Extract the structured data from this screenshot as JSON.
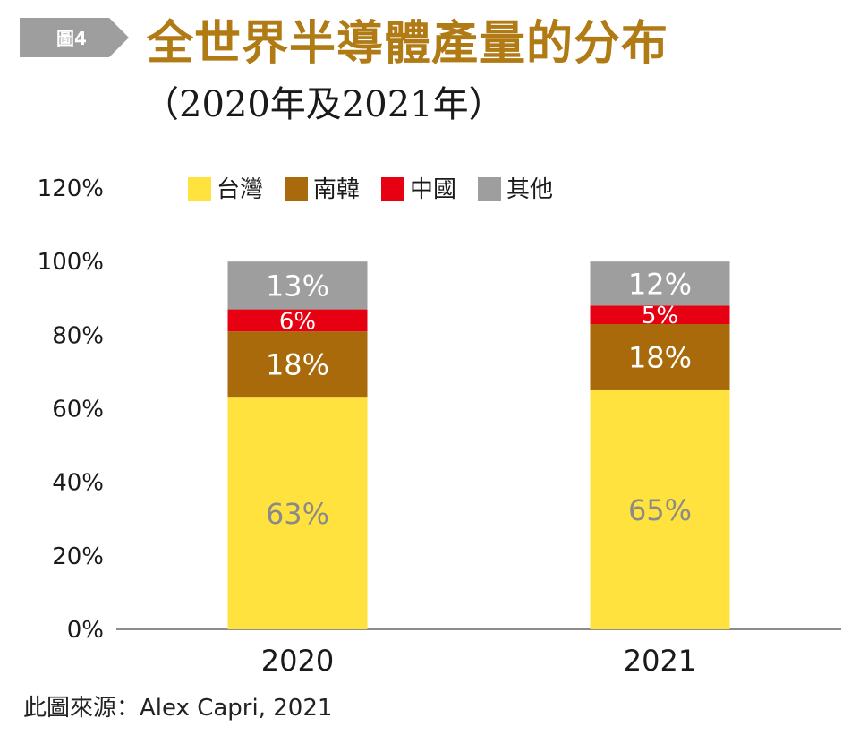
{
  "figure_tag": "圖4",
  "title": "全世界半導體產量的分布",
  "subtitle": "（2020年及2021年）",
  "source": "此圖來源：Alex Capri, 2021",
  "chart_data": {
    "type": "bar",
    "stacked": true,
    "categories": [
      "2020",
      "2021"
    ],
    "series": [
      {
        "name": "台灣",
        "color": "#ffe23d",
        "label_color": "#8a8a8a",
        "values": [
          63,
          65
        ],
        "labels": [
          "63%",
          "65%"
        ]
      },
      {
        "name": "南韓",
        "color": "#a86a0a",
        "label_color": "#ffffff",
        "values": [
          18,
          18
        ],
        "labels": [
          "18%",
          "18%"
        ]
      },
      {
        "name": "中國",
        "color": "#e60012",
        "label_color": "#ffffff",
        "values": [
          6,
          5
        ],
        "labels": [
          "6%",
          "5%"
        ]
      },
      {
        "name": "其他",
        "color": "#9e9e9e",
        "label_color": "#ffffff",
        "values": [
          13,
          12
        ],
        "labels": [
          "13%",
          "12%"
        ]
      }
    ],
    "yticks": [
      "0%",
      "20%",
      "40%",
      "60%",
      "80%",
      "100%",
      "120%"
    ],
    "ylim": [
      0,
      120
    ],
    "legend_position": "top"
  }
}
